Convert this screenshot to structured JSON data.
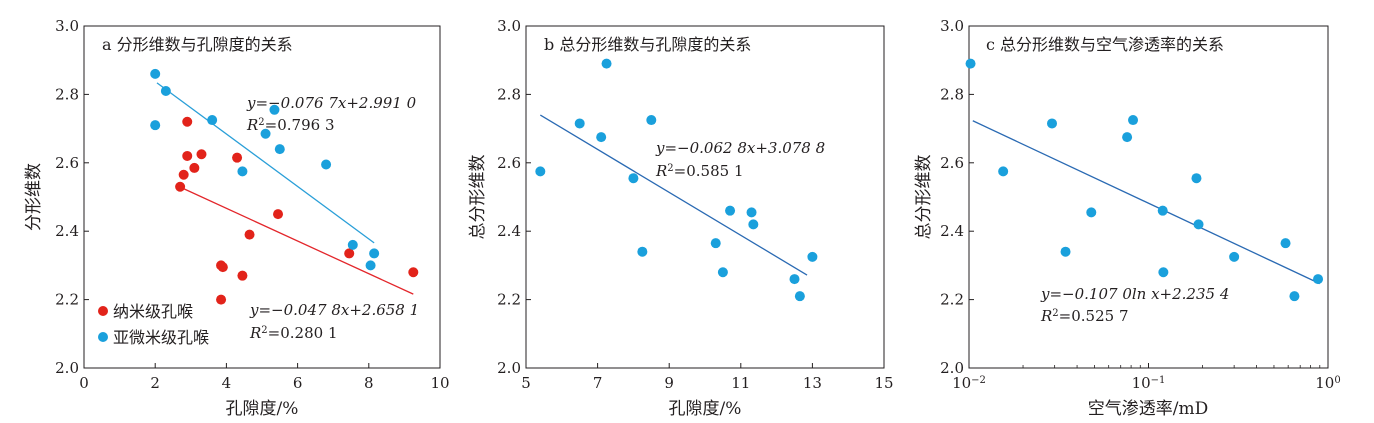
{
  "colors": {
    "red": "#e2231a",
    "blue": "#1aa0dc",
    "red_line": "#e3262b",
    "blue_line": "#2a9fd8",
    "dark_line": "#2a6ab3",
    "axis": "#231f20"
  },
  "chart_data": [
    {
      "type": "scatter",
      "title": "a 分形维数与孔隙度的关系",
      "xlabel": "孔隙度/%",
      "ylabel": "分形维数",
      "xlim": [
        0,
        10
      ],
      "ylim": [
        2.0,
        3.0
      ],
      "x_ticks": [
        0,
        2,
        4,
        6,
        8,
        10
      ],
      "y_ticks": [
        2.0,
        2.2,
        2.4,
        2.6,
        2.8,
        3.0
      ],
      "x_tick_labels": [
        "0",
        "2",
        "4",
        "6",
        "8",
        "10"
      ],
      "y_tick_labels": [
        "2.0",
        "2.2",
        "2.4",
        "2.6",
        "2.8",
        "3.0"
      ],
      "legend_position": "bottom-left",
      "series": [
        {
          "name": "纳米级孔喉",
          "color": "red",
          "points": [
            [
              2.7,
              2.53
            ],
            [
              2.8,
              2.565
            ],
            [
              2.9,
              2.72
            ],
            [
              2.9,
              2.62
            ],
            [
              3.1,
              2.585
            ],
            [
              3.3,
              2.625
            ],
            [
              4.3,
              2.615
            ],
            [
              4.65,
              2.39
            ],
            [
              5.45,
              2.45
            ],
            [
              3.85,
              2.3
            ],
            [
              3.9,
              2.295
            ],
            [
              4.45,
              2.27
            ],
            [
              3.85,
              2.2
            ],
            [
              7.45,
              2.335
            ],
            [
              9.25,
              2.28
            ]
          ],
          "fit": {
            "x": [
              2.65,
              9.25
            ],
            "equation_prefix": "y=−0.047 8",
            "equation_suffix": "x+2.658 1",
            "r2_label": "R",
            "r2_value": "=0.280 1"
          }
        },
        {
          "name": "亚微米级孔喉",
          "color": "blue",
          "points": [
            [
              2.0,
              2.86
            ],
            [
              2.3,
              2.81
            ],
            [
              2.0,
              2.71
            ],
            [
              3.6,
              2.725
            ],
            [
              5.35,
              2.755
            ],
            [
              5.1,
              2.685
            ],
            [
              5.5,
              2.64
            ],
            [
              4.45,
              2.575
            ],
            [
              6.8,
              2.595
            ],
            [
              7.55,
              2.36
            ],
            [
              8.15,
              2.335
            ],
            [
              8.05,
              2.3
            ]
          ],
          "fit": {
            "x": [
              2.05,
              8.15
            ],
            "equation_prefix": "y=−0.076 7",
            "equation_suffix": "x+2.991 0",
            "r2_label": "R",
            "r2_value": "=0.796 3"
          }
        }
      ]
    },
    {
      "type": "scatter",
      "title": "b 总分形维数与孔隙度的关系",
      "xlabel": "孔隙度/%",
      "ylabel": "总分形维数",
      "xlim": [
        5,
        15
      ],
      "ylim": [
        2.0,
        3.0
      ],
      "x_ticks": [
        5,
        7,
        9,
        11,
        13,
        15
      ],
      "y_ticks": [
        2.0,
        2.2,
        2.4,
        2.6,
        2.8,
        3.0
      ],
      "x_tick_labels": [
        "5",
        "7",
        "9",
        "11",
        "13",
        "15"
      ],
      "y_tick_labels": [
        "2.0",
        "2.2",
        "2.4",
        "2.6",
        "2.8",
        "3.0"
      ],
      "series": [
        {
          "color": "blue",
          "points": [
            [
              5.4,
              2.575
            ],
            [
              6.5,
              2.715
            ],
            [
              7.1,
              2.675
            ],
            [
              7.25,
              2.89
            ],
            [
              8.0,
              2.555
            ],
            [
              8.25,
              2.34
            ],
            [
              8.5,
              2.725
            ],
            [
              10.3,
              2.365
            ],
            [
              10.5,
              2.28
            ],
            [
              10.7,
              2.46
            ],
            [
              11.3,
              2.455
            ],
            [
              11.35,
              2.42
            ],
            [
              12.5,
              2.26
            ],
            [
              12.65,
              2.21
            ],
            [
              13.0,
              2.325
            ]
          ],
          "fit": {
            "x": [
              5.4,
              12.85
            ],
            "equation_prefix": "y=−0.062 8",
            "equation_suffix": "x+3.078 8",
            "r2_label": "R",
            "r2_value": "=0.585 1"
          }
        }
      ]
    },
    {
      "type": "scatter",
      "title": "c 总分形维数与空气渗透率的关系",
      "xlabel": "空气渗透率/mD",
      "ylabel": "总分形维数",
      "xscale": "log",
      "xlim": [
        0.01,
        1
      ],
      "ylim": [
        2.0,
        3.0
      ],
      "x_ticks": [
        0.01,
        0.1,
        1
      ],
      "y_ticks": [
        2.0,
        2.2,
        2.4,
        2.6,
        2.8,
        3.0
      ],
      "x_tick_labels": [
        {
          "base": "10",
          "exp": "−2"
        },
        {
          "base": "10",
          "exp": "−1"
        },
        {
          "base": "10",
          "exp": "0"
        }
      ],
      "y_tick_labels": [
        "2.0",
        "2.2",
        "2.4",
        "2.6",
        "2.8",
        "3.0"
      ],
      "series": [
        {
          "color": "blue",
          "points": [
            [
              0.0102,
              2.89
            ],
            [
              0.0155,
              2.575
            ],
            [
              0.029,
              2.715
            ],
            [
              0.0345,
              2.34
            ],
            [
              0.048,
              2.455
            ],
            [
              0.076,
              2.675
            ],
            [
              0.082,
              2.725
            ],
            [
              0.12,
              2.46
            ],
            [
              0.121,
              2.28
            ],
            [
              0.185,
              2.555
            ],
            [
              0.19,
              2.42
            ],
            [
              0.3,
              2.325
            ],
            [
              0.58,
              2.365
            ],
            [
              0.65,
              2.21
            ],
            [
              0.88,
              2.26
            ]
          ],
          "fit": {
            "x": [
              0.0105,
              0.9
            ],
            "equation_prefix": "y=−0.107 0ln ",
            "equation_suffix": "x+2.235 4",
            "r2_label": "R",
            "r2_value": "=0.525 7"
          }
        }
      ]
    }
  ]
}
